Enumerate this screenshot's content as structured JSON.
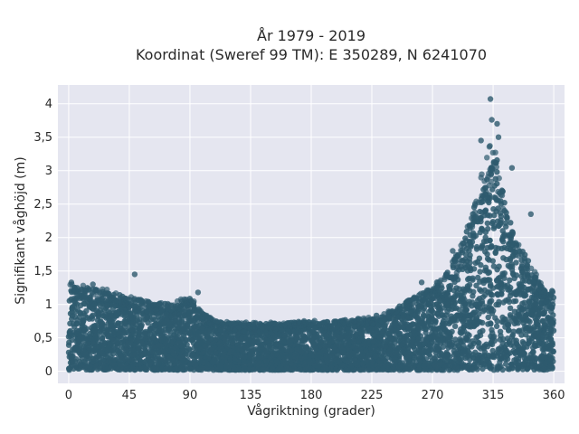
{
  "chart_data": {
    "type": "scatter",
    "title": "År 1979 - 2019",
    "subtitle": "Koordinat (Sweref 99 TM): E 350289, N 6241070",
    "xlabel": "Vågriktning (grader)",
    "ylabel": "Signifikant våghöjd (m)",
    "xlim": [
      -8,
      368
    ],
    "ylim": [
      -0.18,
      4.28
    ],
    "x_ticks": [
      0,
      45,
      90,
      135,
      180,
      225,
      270,
      315,
      360
    ],
    "x_tick_labels": [
      "0",
      "45",
      "90",
      "135",
      "180",
      "225",
      "270",
      "315",
      "360"
    ],
    "y_ticks": [
      0,
      0.5,
      1,
      1.5,
      2,
      2.5,
      3,
      3.5,
      4
    ],
    "y_tick_labels": [
      "0",
      "0,5",
      "1",
      "1,5",
      "2",
      "2,5",
      "3",
      "3,5",
      "4"
    ],
    "grid": true,
    "marker_color": "#2e5a6e",
    "background_color": "#e5e6f0",
    "envelope": {
      "direction": [
        0,
        15,
        30,
        45,
        60,
        75,
        90,
        100,
        110,
        120,
        135,
        150,
        165,
        180,
        195,
        210,
        225,
        240,
        255,
        270,
        280,
        290,
        300,
        305,
        310,
        315,
        320,
        325,
        330,
        340,
        350,
        360
      ],
      "max_height": [
        1.3,
        1.25,
        1.2,
        1.1,
        1.05,
        1.0,
        1.1,
        0.85,
        0.75,
        0.72,
        0.72,
        0.72,
        0.72,
        0.75,
        0.75,
        0.78,
        0.82,
        0.9,
        1.1,
        1.25,
        1.45,
        1.8,
        2.4,
        2.8,
        3.2,
        3.5,
        3.0,
        2.4,
        2.1,
        1.7,
        1.3,
        1.2
      ]
    },
    "notable_points": [
      {
        "x": 313,
        "y": 4.07
      },
      {
        "x": 314,
        "y": 3.76
      },
      {
        "x": 318,
        "y": 3.7
      },
      {
        "x": 306,
        "y": 3.45
      },
      {
        "x": 319,
        "y": 3.5
      },
      {
        "x": 329,
        "y": 3.04
      },
      {
        "x": 343,
        "y": 2.35
      },
      {
        "x": 49,
        "y": 1.45
      },
      {
        "x": 2,
        "y": 1.33
      },
      {
        "x": 96,
        "y": 1.18
      },
      {
        "x": 18,
        "y": 1.3
      },
      {
        "x": 262,
        "y": 1.33
      },
      {
        "x": 285,
        "y": 1.8
      }
    ]
  }
}
